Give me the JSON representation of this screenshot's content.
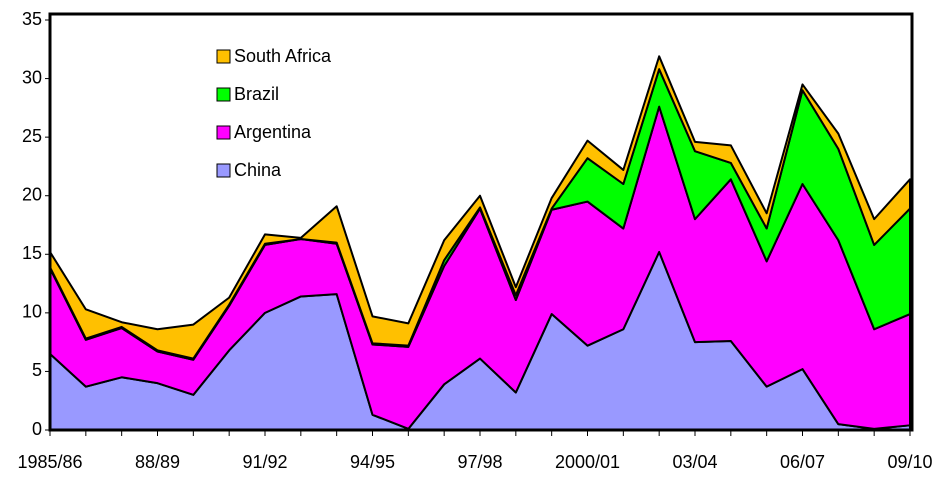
{
  "chart_data": {
    "type": "stacked-area",
    "categories": [
      "1985/86",
      null,
      null,
      "88/89",
      null,
      null,
      "91/92",
      null,
      null,
      "94/95",
      null,
      null,
      "97/98",
      null,
      null,
      "2000/01",
      null,
      null,
      "03/04",
      null,
      null,
      "06/07",
      null,
      null,
      "09/10"
    ],
    "series": [
      {
        "name": "China",
        "color": "#9999ff",
        "values": [
          6.5,
          3.7,
          4.5,
          4.0,
          3.0,
          6.8,
          10.0,
          11.4,
          11.6,
          1.3,
          0.1,
          3.9,
          6.1,
          3.2,
          9.9,
          7.2,
          8.6,
          15.2,
          7.5,
          7.6,
          3.7,
          5.2,
          0.5,
          0.1,
          0.4
        ]
      },
      {
        "name": "Argentina",
        "color": "#ff00ff",
        "values": [
          7.3,
          4.0,
          4.2,
          2.7,
          3.0,
          3.8,
          5.8,
          4.9,
          4.3,
          6.0,
          7.0,
          10.1,
          12.8,
          7.9,
          8.9,
          12.3,
          8.6,
          12.4,
          10.5,
          13.8,
          10.7,
          15.8,
          15.7,
          8.5,
          9.5
        ]
      },
      {
        "name": "Brazil",
        "color": "#00ff00",
        "values": [
          0.1,
          0.1,
          0.1,
          0.1,
          0.1,
          0.1,
          0.1,
          0.0,
          0.1,
          0.1,
          0.1,
          0.5,
          0.1,
          0.4,
          0.1,
          3.7,
          3.8,
          3.2,
          5.8,
          1.4,
          2.8,
          8.0,
          7.8,
          7.2,
          9.0
        ]
      },
      {
        "name": "South Africa",
        "color": "#ffc000",
        "values": [
          1.3,
          2.5,
          0.4,
          1.8,
          2.9,
          0.6,
          0.8,
          0.1,
          3.1,
          2.3,
          1.9,
          1.7,
          1.0,
          0.7,
          0.9,
          1.5,
          1.2,
          1.1,
          0.8,
          1.5,
          1.3,
          0.5,
          1.3,
          2.2,
          2.5
        ]
      }
    ],
    "ylim": [
      0,
      35
    ],
    "yticks": [
      0,
      5,
      10,
      15,
      20,
      25,
      30,
      35
    ]
  }
}
